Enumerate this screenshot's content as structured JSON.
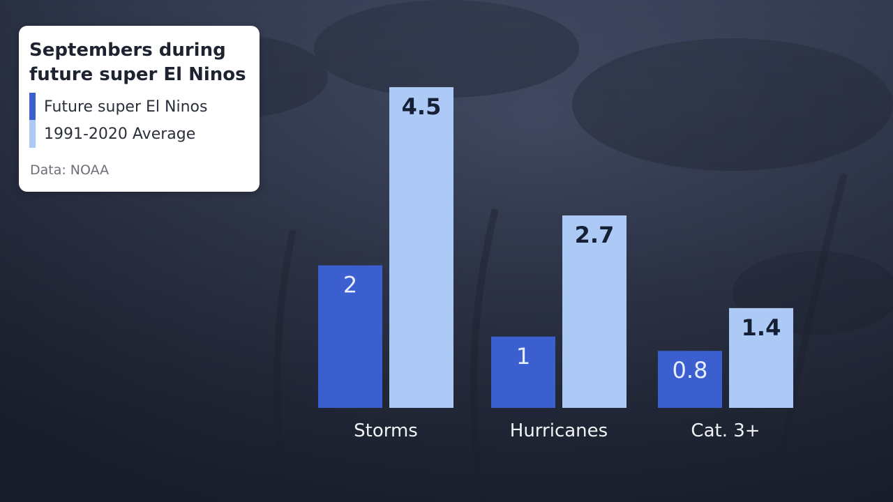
{
  "legend_box": {
    "title": "Septembers during future super El Ninos",
    "source": "Data: NOAA"
  },
  "colors": {
    "future": "#3b5fcf",
    "average": "#adc9f5",
    "label_on_dark": "#e8eefc",
    "label_on_light": "#152035",
    "category_label": "#f0f2f6"
  },
  "chart_data": {
    "type": "bar",
    "title": "Septembers during future super El Ninos",
    "categories": [
      "Storms",
      "Hurricanes",
      "Cat. 3+"
    ],
    "series": [
      {
        "name": "Future super El Ninos",
        "values": [
          2,
          1,
          0.8
        ]
      },
      {
        "name": "1991-2020 Average",
        "values": [
          4.5,
          2.7,
          1.4
        ]
      }
    ],
    "data_labels": [
      [
        "2",
        "1",
        "0.8"
      ],
      [
        "4.5",
        "2.7",
        "1.4"
      ]
    ],
    "ylim": [
      0,
      4.5
    ],
    "grid": false,
    "legend": "top-left",
    "source": "Data: NOAA"
  }
}
